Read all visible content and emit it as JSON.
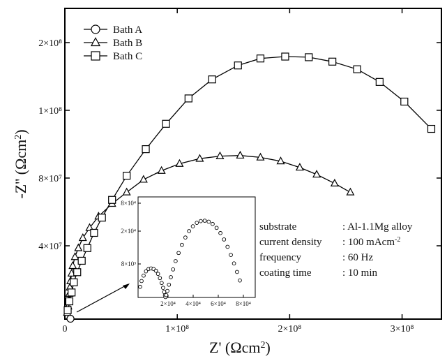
{
  "chart_data": {
    "type": "scatter",
    "xlabel": "Z' (Ωcm²)",
    "ylabel": "-Z'' (Ωcm²)",
    "x_tick_labels": [
      "0",
      "1×10⁸",
      "2×10⁸",
      "3×10⁸"
    ],
    "y_tick_labels": [
      "4×10⁷",
      "8×10⁷",
      "1×10⁸",
      "2×10⁸"
    ],
    "xlim": [
      0,
      335000000.0
    ],
    "ylim": [
      0,
      245000000.0
    ],
    "legend_position": "top-left",
    "series": [
      {
        "name": "Bath A",
        "marker": "circle",
        "points": [
          [
            5000000.0,
            300000.0
          ]
        ]
      },
      {
        "name": "Bath B",
        "marker": "triangle",
        "points": [
          [
            2000000.0,
            5000000.0
          ],
          [
            3000000.0,
            10000000.0
          ],
          [
            3500000.0,
            15000000.0
          ],
          [
            4000000.0,
            20000000.0
          ],
          [
            4500000.0,
            25000000.0
          ],
          [
            5000000.0,
            30000000.0
          ],
          [
            6000000.0,
            36000000.0
          ],
          [
            7000000.0,
            42000000.0
          ],
          [
            9000000.0,
            49000000.0
          ],
          [
            12000000.0,
            56000000.0
          ],
          [
            16000000.0,
            64000000.0
          ],
          [
            22000000.0,
            72000000.0
          ],
          [
            30000000.0,
            81000000.0
          ],
          [
            42000000.0,
            91000000.0
          ],
          [
            55000000.0,
            100000000.0
          ],
          [
            70000000.0,
            110000000.0
          ],
          [
            86000000.0,
            117000000.0
          ],
          [
            102000000.0,
            122500000.0
          ],
          [
            120000000.0,
            126500000.0
          ],
          [
            138000000.0,
            128500000.0
          ],
          [
            156000000.0,
            129000000.0
          ],
          [
            174000000.0,
            127500000.0
          ],
          [
            192000000.0,
            124500000.0
          ],
          [
            209000000.0,
            119500000.0
          ],
          [
            224000000.0,
            114000000.0
          ],
          [
            240000000.0,
            107000000.0
          ],
          [
            254000000.0,
            100000000.0
          ]
        ]
      },
      {
        "name": "Bath C",
        "marker": "square",
        "points": [
          [
            2500000.0,
            7000000.0
          ],
          [
            4000000.0,
            14000000.0
          ],
          [
            6000000.0,
            21000000.0
          ],
          [
            8000000.0,
            29000000.0
          ],
          [
            11000000.0,
            37000000.0
          ],
          [
            15000000.0,
            46000000.0
          ],
          [
            20000000.0,
            56000000.0
          ],
          [
            26000000.0,
            68000000.0
          ],
          [
            33000000.0,
            80000000.0
          ],
          [
            42000000.0,
            94000000.0
          ],
          [
            55000000.0,
            113000000.0
          ],
          [
            72000000.0,
            134000000.0
          ],
          [
            90000000.0,
            154000000.0
          ],
          [
            110000000.0,
            174000000.0
          ],
          [
            131000000.0,
            189000000.0
          ],
          [
            154000000.0,
            200000000.0
          ],
          [
            174000000.0,
            205500000.0
          ],
          [
            196000000.0,
            207000000.0
          ],
          [
            217000000.0,
            206500000.0
          ],
          [
            238000000.0,
            203000000.0
          ],
          [
            260000000.0,
            197000000.0
          ],
          [
            280000000.0,
            187000000.0
          ],
          [
            302000000.0,
            171500000.0
          ],
          [
            326000000.0,
            150000000.0
          ]
        ]
      }
    ],
    "inset": {
      "type": "scatter",
      "marker": "circle",
      "series_name": "Bath A",
      "x_tick_labels": [
        "2×10⁴",
        "4×10⁴",
        "6×10⁴",
        "8×10⁴"
      ],
      "y_tick_labels": [
        "8×10³",
        "2×10⁴",
        "8×10⁴"
      ],
      "xlim": [
        0,
        74000.0
      ],
      "ylim": [
        0,
        52000.0
      ],
      "points": [
        [
          1300.0,
          5500.0
        ],
        [
          2200.0,
          8500.0
        ],
        [
          3500.0,
          11300.0
        ],
        [
          5000.0,
          13500.0
        ],
        [
          6600.0,
          14700.0
        ],
        [
          8200.0,
          15000.0
        ],
        [
          9800.0,
          14700.0
        ],
        [
          11300.0,
          13800.0
        ],
        [
          12600.0,
          12200.0
        ],
        [
          13800.0,
          10000.0
        ],
        [
          14900.0,
          7500.0
        ],
        [
          15800.0,
          5000.0
        ],
        [
          16500.0,
          2800.0
        ],
        [
          17000.0,
          1100.0
        ],
        [
          17300.0,
          200.0
        ],
        [
          17800.0,
          1200.0
        ],
        [
          18500.0,
          3400.0
        ],
        [
          19500.0,
          6600.0
        ],
        [
          20700.0,
          10500.0
        ],
        [
          22100.0,
          14500.0
        ],
        [
          23700.0,
          18800.0
        ],
        [
          25600.0,
          23000.0
        ],
        [
          27700.0,
          27200.0
        ],
        [
          29900.0,
          31000.0
        ],
        [
          32200.0,
          34300.0
        ],
        [
          34600.0,
          36800.0
        ],
        [
          37100.0,
          38600.0
        ],
        [
          39600.0,
          39500.0
        ],
        [
          42100.0,
          39700.0
        ],
        [
          44600.0,
          39200.0
        ],
        [
          47100.0,
          38000.0
        ],
        [
          49600.0,
          36000.0
        ],
        [
          52000.0,
          33300.0
        ],
        [
          54300.0,
          30000.0
        ],
        [
          56500.0,
          26200.0
        ],
        [
          58600.0,
          22000.0
        ],
        [
          60600.0,
          17600.0
        ],
        [
          62500.0,
          13200.0
        ],
        [
          64300.0,
          8800.0
        ]
      ]
    },
    "annotation": {
      "rows": [
        {
          "label": "substrate",
          "value": ": Al-1.1Mg alloy"
        },
        {
          "label": "current density",
          "value": ": 100 mAcm",
          "sup": "-2"
        },
        {
          "label": "frequency",
          "value": ": 60 Hz"
        },
        {
          "label": "coating time",
          "value": ": 10 min"
        }
      ]
    }
  }
}
